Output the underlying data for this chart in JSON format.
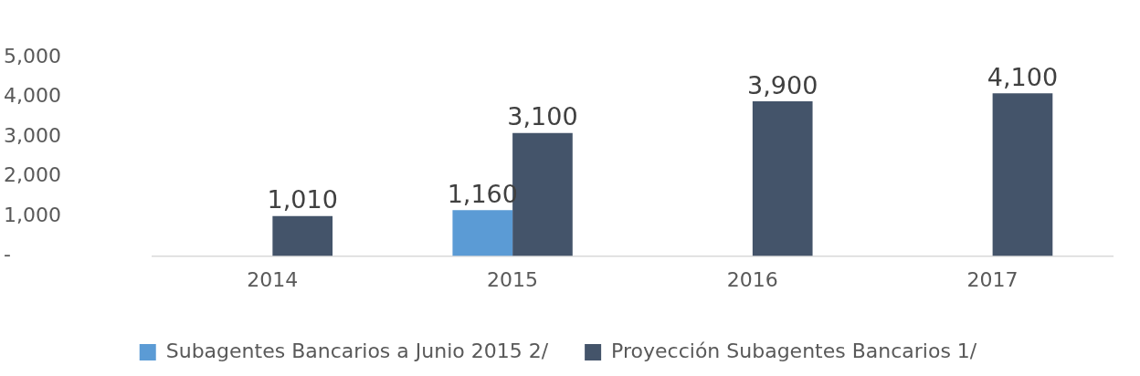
{
  "chart_data": {
    "type": "bar",
    "categories": [
      "2014",
      "2015",
      "2016",
      "2017"
    ],
    "series": [
      {
        "name": "Subagentes Bancarios a Junio 2015 2/",
        "color": "#5b9bd5",
        "values": [
          null,
          1160,
          null,
          null
        ],
        "value_labels": [
          null,
          "1,160",
          null,
          null
        ]
      },
      {
        "name": "Proyección Subagentes Bancarios 1/",
        "color": "#44546a",
        "values": [
          1010,
          3100,
          3900,
          4100
        ],
        "value_labels": [
          "1,010",
          "3,100",
          "3,900",
          "4,100"
        ]
      }
    ],
    "ylim": [
      0,
      5000
    ],
    "yticks": [
      {
        "value": 0,
        "label": "-"
      },
      {
        "value": 1000,
        "label": "1,000"
      },
      {
        "value": 2000,
        "label": "2,000"
      },
      {
        "value": 3000,
        "label": "3,000"
      },
      {
        "value": 4000,
        "label": "4,000"
      },
      {
        "value": 5000,
        "label": "5,000"
      }
    ],
    "grid": false,
    "legend": "bottom"
  }
}
